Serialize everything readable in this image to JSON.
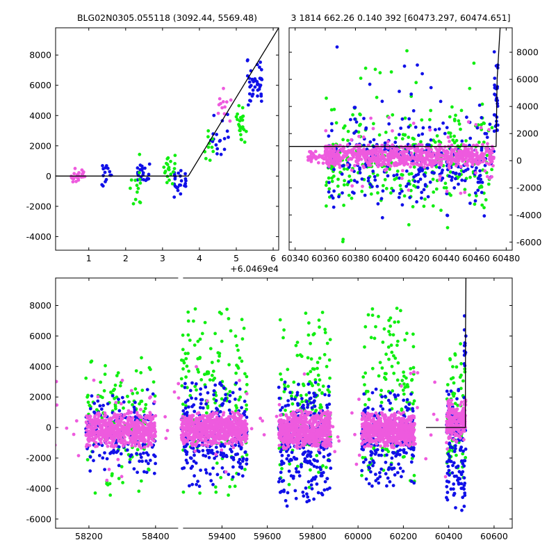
{
  "colors": {
    "magenta": "#ee5ade",
    "green": "#11ee11",
    "blue": "#1010e8",
    "model": "#000000"
  },
  "chart_data": [
    {
      "id": "zoom",
      "type": "scatter",
      "title": "BLG02N0305.055118 (3092.44, 5569.48)",
      "xlim": [
        0.1,
        6.15
      ],
      "ylim": [
        -4900,
        9800
      ],
      "x_offset_label": "+6.0469e4",
      "xticks": [
        1,
        2,
        3,
        4,
        5,
        6
      ],
      "yticks": [
        -4000,
        -2000,
        0,
        2000,
        4000,
        6000,
        8000
      ],
      "y_tick_side": "left",
      "model": {
        "x": [
          0.1,
          3.7,
          6.15
        ],
        "y": [
          0,
          0,
          9800
        ]
      },
      "series": [
        {
          "color": "magenta",
          "clusters": [
            {
              "x": [
                0.5,
                0.9
              ],
              "y": [
                -500,
                700
              ],
              "n": 25
            },
            {
              "x": [
                4.5,
                4.9
              ],
              "y": [
                3600,
                5800
              ],
              "n": 12
            }
          ]
        },
        {
          "color": "blue",
          "clusters": [
            {
              "x": [
                1.35,
                1.65
              ],
              "y": [
                -900,
                800
              ],
              "n": 14
            },
            {
              "x": [
                2.3,
                2.65
              ],
              "y": [
                -500,
                1000
              ],
              "n": 22
            },
            {
              "x": [
                3.3,
                3.65
              ],
              "y": [
                -1500,
                600
              ],
              "n": 25
            },
            {
              "x": [
                4.3,
                4.8
              ],
              "y": [
                300,
                4200
              ],
              "n": 18
            },
            {
              "x": [
                5.3,
                5.7
              ],
              "y": [
                4300,
                8200
              ],
              "n": 40
            }
          ]
        },
        {
          "color": "green",
          "clusters": [
            {
              "x": [
                2.1,
                2.4
              ],
              "y": [
                -2400,
                1500
              ],
              "n": 14
            },
            {
              "x": [
                3.0,
                3.35
              ],
              "y": [
                -900,
                1700
              ],
              "n": 20
            },
            {
              "x": [
                4.1,
                4.5
              ],
              "y": [
                900,
                3000
              ],
              "n": 10
            },
            {
              "x": [
                5.0,
                5.3
              ],
              "y": [
                1900,
                4800
              ],
              "n": 25
            }
          ]
        }
      ]
    },
    {
      "id": "recent",
      "type": "scatter",
      "title": "3 1814 662.26 0.140 392 [60473.297, 60474.651]",
      "xlim": [
        60336,
        60484
      ],
      "ylim": [
        -6600,
        9800
      ],
      "xticks": [
        60340,
        60360,
        60380,
        60400,
        60420,
        60440,
        60460,
        60480
      ],
      "yticks": [
        -6000,
        -4000,
        -2000,
        0,
        2000,
        4000,
        6000,
        8000
      ],
      "y_tick_side": "right",
      "model": {
        "x": [
          60336,
          60473.3,
          60474.0,
          60476
        ],
        "y": [
          1050,
          1050,
          6000,
          9800
        ]
      },
      "series": [
        {
          "color": "green",
          "clusters": [
            {
              "x": [
                60360,
                60472
              ],
              "y": [
                -3500,
                3800
              ],
              "n": 260
            },
            {
              "x": [
                60360,
                60472
              ],
              "y": [
                -6000,
                9000
              ],
              "n": 50
            }
          ]
        },
        {
          "color": "blue",
          "clusters": [
            {
              "x": [
                60360,
                60472
              ],
              "y": [
                -3500,
                3200
              ],
              "n": 260
            },
            {
              "x": [
                60360,
                60472
              ],
              "y": [
                -5500,
                8600
              ],
              "n": 40
            },
            {
              "x": [
                60472,
                60474.5
              ],
              "y": [
                1000,
                8200
              ],
              "n": 30
            }
          ]
        },
        {
          "color": "magenta",
          "clusters": [
            {
              "x": [
                60348,
                60372
              ],
              "y": [
                -200,
                900
              ],
              "n": 60
            },
            {
              "x": [
                60360,
                60472
              ],
              "y": [
                -500,
                1200
              ],
              "n": 650
            },
            {
              "x": [
                60360,
                60472
              ],
              "y": [
                -3000,
                4500
              ],
              "n": 60
            }
          ]
        }
      ]
    },
    {
      "id": "full",
      "type": "scatter",
      "xlim": [
        58100,
        60680
      ],
      "ylim": [
        -6600,
        9800
      ],
      "xticks": [
        58200,
        58400,
        59400,
        59600,
        59800,
        60000,
        60200,
        60400,
        60600
      ],
      "yticks": [
        -6000,
        -4000,
        -2000,
        0,
        2000,
        4000,
        6000,
        8000
      ],
      "y_tick_side": "left",
      "gaps": [
        {
          "from": 58450,
          "to": 59180,
          "lo": 58470,
          "hi": 59210,
          "place": 0.27
        }
      ],
      "model": {
        "x": [
          60300,
          60473.3,
          60474.0,
          60476
        ],
        "y": [
          0,
          0,
          6000,
          9800
        ]
      },
      "series": [
        {
          "color": "green",
          "clusters": [
            {
              "x": [
                58190,
                58400
              ],
              "y": [
                -4500,
                5000
              ],
              "n": 130
            },
            {
              "x": [
                59220,
                59510
              ],
              "y": [
                -4500,
                8500
              ],
              "n": 160
            },
            {
              "x": [
                59650,
                59880
              ],
              "y": [
                -4500,
                8000
              ],
              "n": 150
            },
            {
              "x": [
                60015,
                60250
              ],
              "y": [
                -4000,
                8000
              ],
              "n": 150
            },
            {
              "x": [
                60390,
                60475
              ],
              "y": [
                -3500,
                5500
              ],
              "n": 80
            }
          ]
        },
        {
          "color": "blue",
          "clusters": [
            {
              "x": [
                58190,
                58400
              ],
              "y": [
                -3500,
                2500
              ],
              "n": 160
            },
            {
              "x": [
                59220,
                59510
              ],
              "y": [
                -4000,
                3000
              ],
              "n": 260
            },
            {
              "x": [
                59650,
                59880
              ],
              "y": [
                -5200,
                3200
              ],
              "n": 280
            },
            {
              "x": [
                60015,
                60250
              ],
              "y": [
                -4000,
                2600
              ],
              "n": 220
            },
            {
              "x": [
                60390,
                60475
              ],
              "y": [
                -5600,
                2800
              ],
              "n": 120
            },
            {
              "x": [
                60468,
                60476
              ],
              "y": [
                3000,
                8000
              ],
              "n": 14
            }
          ]
        },
        {
          "color": "magenta",
          "clusters": [
            {
              "x": [
                58190,
                58400
              ],
              "y": [
                -1300,
                1000
              ],
              "n": 600
            },
            {
              "x": [
                59220,
                59510
              ],
              "y": [
                -1200,
                1000
              ],
              "n": 650
            },
            {
              "x": [
                59650,
                59880
              ],
              "y": [
                -1400,
                1100
              ],
              "n": 600
            },
            {
              "x": [
                60015,
                60250
              ],
              "y": [
                -1300,
                1000
              ],
              "n": 600
            },
            {
              "x": [
                60390,
                60475
              ],
              "y": [
                -1000,
                1800
              ],
              "n": 200
            },
            {
              "x": [
                58190,
                60475
              ],
              "y": [
                -3500,
                4000
              ],
              "n": 120
            }
          ]
        }
      ]
    }
  ]
}
